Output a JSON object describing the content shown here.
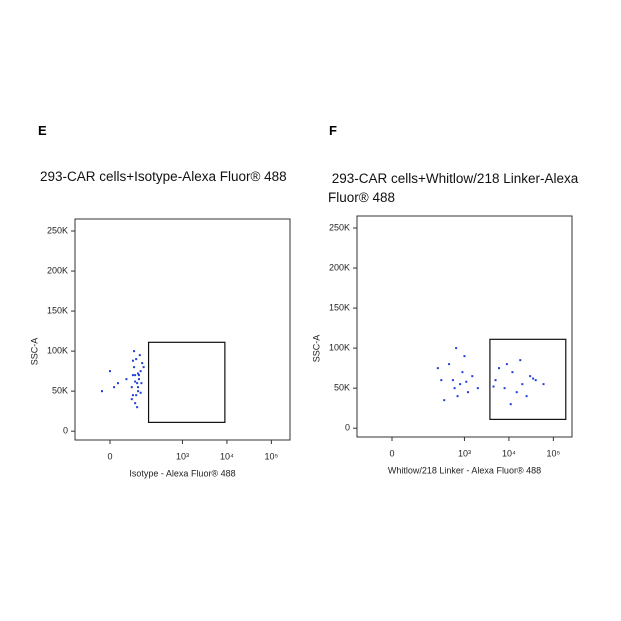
{
  "chart_data": [
    {
      "type": "scatter",
      "panel": "E",
      "title": "293-CAR cells+Isotype-Alexa Fluor® 488",
      "x_label": "Isotype - Alexa Fluor® 488",
      "y_label": "SSC-A",
      "x_scale": "biexponential",
      "color": "#1f3fd6",
      "xlim": [
        -140,
        262144
      ],
      "ylim": [
        -11000,
        265000
      ],
      "xticks": [
        0,
        {
          "value": 1000,
          "label": "10³"
        },
        {
          "value": 10000,
          "label": "10⁴"
        },
        {
          "value": 100000,
          "label": "10⁵"
        }
      ],
      "yticks": [
        0,
        {
          "value": 50000,
          "label": "50K"
        },
        {
          "value": 100000,
          "label": "100K"
        },
        {
          "value": 150000,
          "label": "150K"
        },
        {
          "value": 200000,
          "label": "200K"
        },
        {
          "value": 250000,
          "label": "250K"
        }
      ],
      "x": [
        20,
        80,
        95,
        70,
        110,
        -20,
        85,
        100,
        75,
        65,
        90,
        120,
        10,
        105,
        80,
        70,
        95,
        0,
        115,
        85,
        75,
        100,
        45,
        130,
        90,
        65,
        80,
        110,
        70,
        95
      ],
      "y": [
        60000,
        70000,
        55000,
        45000,
        75000,
        50000,
        90000,
        65000,
        80000,
        40000,
        60000,
        85000,
        55000,
        95000,
        35000,
        70000,
        50000,
        75000,
        60000,
        45000,
        100000,
        70000,
        65000,
        80000,
        30000,
        55000,
        62000,
        48000,
        88000,
        72000
      ],
      "gate": {
        "x": [
          170,
          9000
        ],
        "y": [
          11000,
          111000
        ]
      }
    },
    {
      "type": "scatter",
      "panel": "F",
      "title": " 293-CAR cells+Whitlow/218 Linker-Alexa Fluor® 488",
      "x_label": "Whitlow/218 Linker - Alexa Fluor® 488",
      "y_label": "SSC-A",
      "x_scale": "biexponential",
      "color": "#1f3fd6",
      "xlim": [
        -140,
        262144
      ],
      "ylim": [
        -11000,
        265000
      ],
      "xticks": [
        0,
        {
          "value": 1000,
          "label": "10³"
        },
        {
          "value": 10000,
          "label": "10⁴"
        },
        {
          "value": 100000,
          "label": "10⁵"
        }
      ],
      "yticks": [
        0,
        {
          "value": 50000,
          "label": "50K"
        },
        {
          "value": 100000,
          "label": "100K"
        },
        {
          "value": 150000,
          "label": "150K"
        },
        {
          "value": 200000,
          "label": "200K"
        },
        {
          "value": 250000,
          "label": "250K"
        }
      ],
      "x": [
        300,
        600,
        900,
        1200,
        450,
        800,
        1500,
        700,
        250,
        1000,
        2000,
        550,
        350,
        1100,
        650,
        5000,
        8000,
        12000,
        20000,
        30000,
        15000,
        40000,
        9000,
        25000,
        60000,
        6000,
        18000,
        11000,
        35000,
        4500
      ],
      "y": [
        60000,
        50000,
        70000,
        45000,
        80000,
        55000,
        65000,
        40000,
        75000,
        90000,
        50000,
        60000,
        35000,
        58000,
        100000,
        60000,
        50000,
        70000,
        55000,
        65000,
        45000,
        60000,
        80000,
        40000,
        55000,
        75000,
        85000,
        30000,
        62000,
        52000
      ],
      "gate": {
        "x": [
          3740,
          190000
        ],
        "y": [
          11000,
          111000
        ]
      }
    }
  ]
}
